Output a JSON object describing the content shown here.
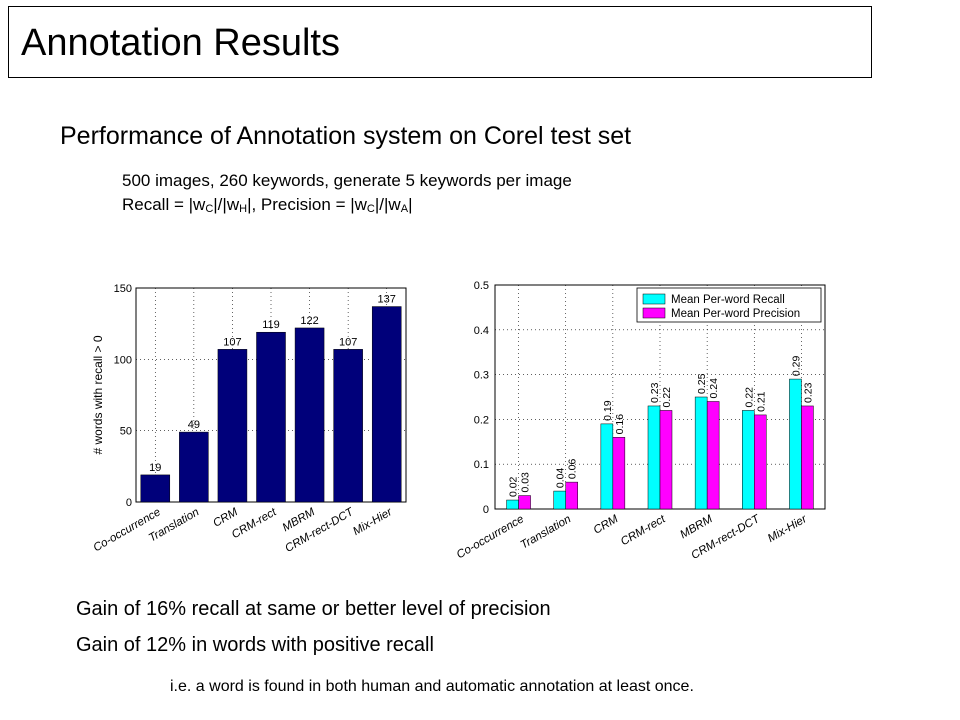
{
  "title": "Annotation Results",
  "subtitle": "Performance of Annotation system on Corel test set",
  "info_line1": "500 images,  260 keywords, generate 5 keywords per image",
  "recall_formula": {
    "recall_prefix": "Recall  = |w",
    "sub_c1": "C",
    "mid1": "|/|w",
    "sub_h": "H",
    "precision_prefix": "|, Precision = |w",
    "sub_c2": "C",
    "mid2": "|/|w",
    "sub_a": "A",
    "end": "|"
  },
  "bullets": [
    "Gain of 16% recall at same or better level of precision",
    "Gain of 12% in words with positive recall"
  ],
  "footnote": "i.e. a word is found in both human and automatic annotation at least once.",
  "colors": {
    "bar_navy": "#00007a",
    "recall_cyan": "#00ffff",
    "precision_magenta": "#ff00ff"
  },
  "chart_data": [
    {
      "type": "bar",
      "categories": [
        "Co-occurrence",
        "Translation",
        "CRM",
        "CRM-rect",
        "MBRM",
        "CRM-rect-DCT",
        "Mix-Hier"
      ],
      "values": [
        19,
        49,
        107,
        119,
        122,
        107,
        137
      ],
      "value_labels": [
        "19",
        "49",
        "107",
        "119",
        "122",
        "107",
        "137"
      ],
      "ylabel": "# words with recall > 0",
      "ylim": [
        0,
        150
      ],
      "yticks": [
        "0",
        "50",
        "100",
        "150"
      ],
      "grid": true
    },
    {
      "type": "bar",
      "categories": [
        "Co-occurrence",
        "Translation",
        "CRM",
        "CRM-rect",
        "MBRM",
        "CRM-rect-DCT",
        "Mix-Hier"
      ],
      "series": [
        {
          "name": "Mean Per-word Recall",
          "values": [
            0.02,
            0.04,
            0.19,
            0.23,
            0.25,
            0.22,
            0.29
          ],
          "labels": [
            "0.02",
            "0.04",
            "0.19",
            "0.23",
            "0.25",
            "0.22",
            "0.29"
          ]
        },
        {
          "name": "Mean Per-word Precision",
          "values": [
            0.03,
            0.06,
            0.16,
            0.22,
            0.24,
            0.21,
            0.23
          ],
          "labels": [
            "0.03",
            "0.06",
            "0.16",
            "0.22",
            "0.24",
            "0.21",
            "0.23"
          ]
        }
      ],
      "ylim": [
        0,
        0.5
      ],
      "yticks": [
        "0",
        "0.1",
        "0.2",
        "0.3",
        "0.4",
        "0.5"
      ],
      "legend": "top-right",
      "grid": true
    }
  ]
}
